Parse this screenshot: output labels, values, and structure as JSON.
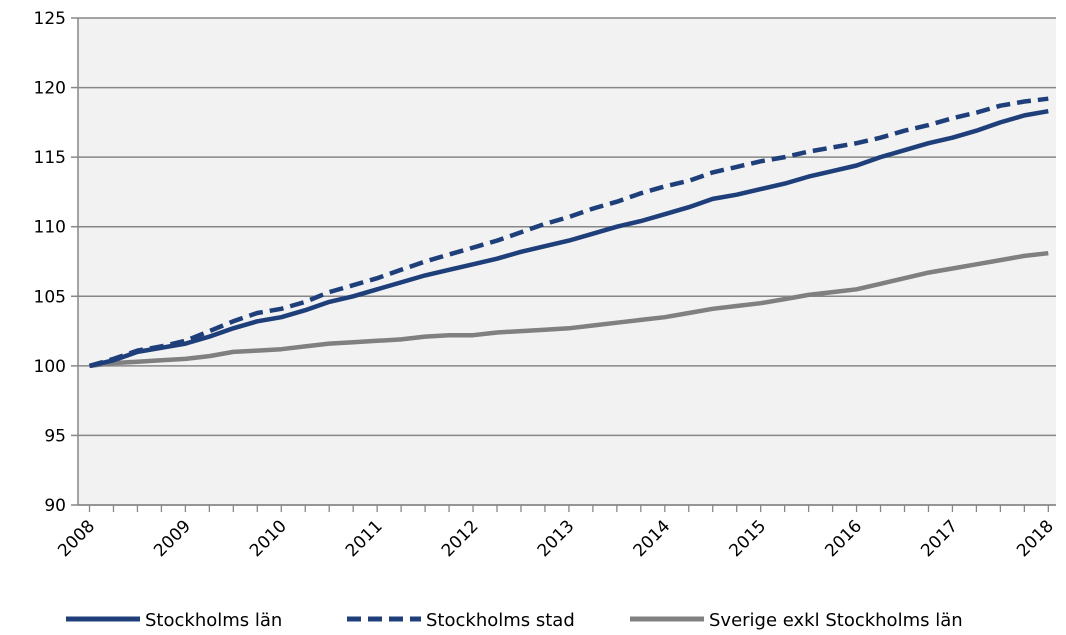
{
  "chart_data": {
    "type": "line",
    "title": "",
    "xlabel": "",
    "ylabel": "",
    "x": [
      2008,
      2008.25,
      2008.5,
      2008.75,
      2009,
      2009.25,
      2009.5,
      2009.75,
      2010,
      2010.25,
      2010.5,
      2010.75,
      2011,
      2011.25,
      2011.5,
      2011.75,
      2012,
      2012.25,
      2012.5,
      2012.75,
      2013,
      2013.25,
      2013.5,
      2013.75,
      2014,
      2014.25,
      2014.5,
      2014.75,
      2015,
      2015.25,
      2015.5,
      2015.75,
      2016,
      2016.25,
      2016.5,
      2016.75,
      2017,
      2017.25,
      2017.5,
      2017.75,
      2018
    ],
    "xlim": [
      2007.88,
      2018.08
    ],
    "x_ticks": [
      2008,
      2009,
      2010,
      2011,
      2012,
      2013,
      2014,
      2015,
      2016,
      2017,
      2018
    ],
    "x_tick_labels": [
      "2008",
      "2009",
      "2010",
      "2011",
      "2012",
      "2013",
      "2014",
      "2015",
      "2016",
      "2017",
      "2018"
    ],
    "ylim": [
      90,
      125
    ],
    "y_ticks": [
      90,
      95,
      100,
      105,
      110,
      115,
      120,
      125
    ],
    "y_tick_labels": [
      "90",
      "95",
      "100",
      "105",
      "110",
      "115",
      "120",
      "125"
    ],
    "grid": "horizontal",
    "legend_position": "bottom",
    "series": [
      {
        "name": "Stockholms län",
        "color": "#1f3f7a",
        "style": "solid",
        "values": [
          100.0,
          100.4,
          101.0,
          101.3,
          101.6,
          102.1,
          102.7,
          103.2,
          103.5,
          104.0,
          104.6,
          105.0,
          105.5,
          106.0,
          106.5,
          106.9,
          107.3,
          107.7,
          108.2,
          108.6,
          109.0,
          109.5,
          110.0,
          110.4,
          110.9,
          111.4,
          112.0,
          112.3,
          112.7,
          113.1,
          113.6,
          114.0,
          114.4,
          115.0,
          115.5,
          116.0,
          116.4,
          116.9,
          117.5,
          118.0,
          118.3
        ]
      },
      {
        "name": "Stockholms stad",
        "color": "#1f3f7a",
        "style": "dashed",
        "values": [
          100.0,
          100.5,
          101.1,
          101.4,
          101.8,
          102.5,
          103.2,
          103.8,
          104.1,
          104.6,
          105.3,
          105.8,
          106.3,
          106.9,
          107.5,
          108.0,
          108.5,
          109.0,
          109.6,
          110.2,
          110.7,
          111.3,
          111.8,
          112.4,
          112.9,
          113.3,
          113.9,
          114.3,
          114.7,
          115.0,
          115.4,
          115.7,
          116.0,
          116.4,
          116.9,
          117.3,
          117.8,
          118.2,
          118.7,
          119.0,
          119.2
        ]
      },
      {
        "name": "Sverige exkl Stockholms län",
        "color": "#808080",
        "style": "solid",
        "values": [
          100.0,
          100.2,
          100.3,
          100.4,
          100.5,
          100.7,
          101.0,
          101.1,
          101.2,
          101.4,
          101.6,
          101.7,
          101.8,
          101.9,
          102.1,
          102.2,
          102.2,
          102.4,
          102.5,
          102.6,
          102.7,
          102.9,
          103.1,
          103.3,
          103.5,
          103.8,
          104.1,
          104.3,
          104.5,
          104.8,
          105.1,
          105.3,
          105.5,
          105.9,
          106.3,
          106.7,
          107.0,
          107.3,
          107.6,
          107.9,
          108.1
        ]
      }
    ]
  }
}
